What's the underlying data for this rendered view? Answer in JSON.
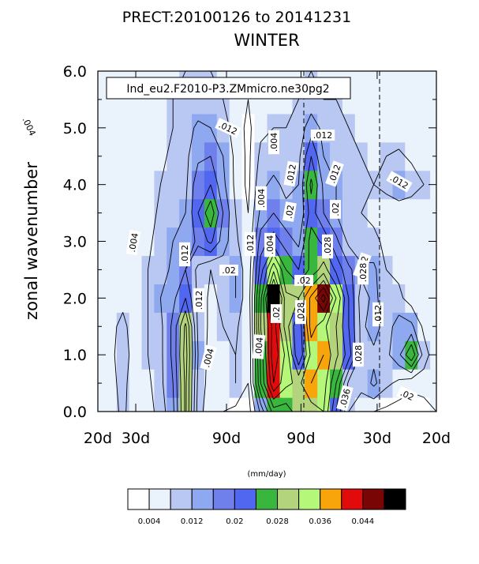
{
  "chart_data": {
    "type": "heatmap",
    "title_line1": "PRECT:20100126 to 20141231",
    "title_line2": "WINTER",
    "annotation": "Ind_eu2.F2010-P3.ZMmicro.ne30pg2",
    "ylabel": "zonal wavenumber",
    "ylim": [
      0,
      6
    ],
    "yticks": [
      "0.0",
      "1.0",
      "2.0",
      "3.0",
      "4.0",
      "5.0",
      "6.0"
    ],
    "xticks": [
      "20d",
      "30d",
      "90d",
      "90d",
      "30d",
      "20d"
    ],
    "units": "(mm/day)",
    "levels": [
      0.004,
      0.008,
      0.012,
      0.016,
      0.02,
      0.024,
      0.028,
      0.032,
      0.036,
      0.04,
      0.044,
      0.048
    ],
    "colorbar_labels": [
      "0.004",
      "0.012",
      "0.02",
      "0.028",
      "0.036",
      "0.044"
    ],
    "colors": [
      "#ffffff",
      "#eaf3fb",
      "#b9c8f2",
      "#8fa9f0",
      "#6f80ec",
      "#5267ef",
      "#38b63e",
      "#b3d47c",
      "#b4f779",
      "#f8a40b",
      "#e20b0b",
      "#7a0505",
      "#000000"
    ],
    "contour_labels": [
      ".004",
      ".004",
      ".004",
      ".004",
      ".004",
      ".004",
      ".004",
      ".012",
      ".012",
      ".012",
      ".012",
      ".012",
      ".012",
      ".012",
      ".012",
      ".012",
      ".012",
      ".02",
      ".02",
      ".02",
      ".02",
      ".02",
      ".02",
      ".028",
      ".028",
      ".028",
      ".028",
      ".036"
    ],
    "rows_wavenumber": [
      0,
      0.5,
      1,
      1.5,
      2,
      2.5,
      3,
      3.5,
      4,
      4.5,
      5,
      5.5,
      6
    ],
    "cols_x_fraction": [
      0,
      0.037,
      0.074,
      0.111,
      0.148,
      0.185,
      0.222,
      0.259,
      0.296,
      0.333,
      0.37,
      0.407,
      0.444,
      0.481,
      0.519,
      0.556,
      0.593,
      0.63,
      0.667,
      0.704,
      0.741,
      0.778,
      0.815,
      0.852,
      0.889,
      0.926,
      0.963,
      1
    ],
    "grid": [
      [
        0.006,
        0.006,
        0.009,
        0.005,
        0.006,
        0.01,
        0.015,
        0.029,
        0.01,
        0.005,
        0.004,
        0.003,
        0.002,
        0.013,
        0.026,
        0.026,
        0.03,
        0.03,
        0.032,
        0.02,
        0.008,
        0.006,
        0.004,
        0.003,
        0.002,
        0.002,
        0.002,
        0.004
      ],
      [
        0.006,
        0.007,
        0.009,
        0.006,
        0.007,
        0.011,
        0.016,
        0.029,
        0.011,
        0.006,
        0.007,
        0.008,
        0.004,
        0.024,
        0.04,
        0.033,
        0.031,
        0.036,
        0.034,
        0.024,
        0.011,
        0.009,
        0.013,
        0.009,
        0.007,
        0.005,
        0.006,
        0.005
      ],
      [
        0.005,
        0.007,
        0.01,
        0.006,
        0.008,
        0.011,
        0.017,
        0.03,
        0.012,
        0.006,
        0.007,
        0.008,
        0.004,
        0.025,
        0.043,
        0.035,
        0.02,
        0.033,
        0.036,
        0.029,
        0.022,
        0.011,
        0.011,
        0.011,
        0.015,
        0.024,
        0.01,
        0.005
      ],
      [
        0.005,
        0.007,
        0.009,
        0.006,
        0.008,
        0.011,
        0.017,
        0.029,
        0.011,
        0.007,
        0.008,
        0.009,
        0.004,
        0.028,
        0.042,
        0.03,
        0.02,
        0.038,
        0.033,
        0.028,
        0.02,
        0.011,
        0.014,
        0.01,
        0.014,
        0.013,
        0.007,
        0.004
      ],
      [
        0.006,
        0.006,
        0.007,
        0.006,
        0.008,
        0.012,
        0.015,
        0.02,
        0.011,
        0.007,
        0.009,
        0.012,
        0.005,
        0.027,
        0.05,
        0.029,
        0.028,
        0.037,
        0.046,
        0.032,
        0.02,
        0.01,
        0.013,
        0.01,
        0.009,
        0.006,
        0.004,
        0.004
      ],
      [
        0.005,
        0.005,
        0.006,
        0.006,
        0.008,
        0.01,
        0.013,
        0.016,
        0.011,
        0.008,
        0.01,
        0.012,
        0.005,
        0.022,
        0.035,
        0.024,
        0.02,
        0.025,
        0.03,
        0.023,
        0.017,
        0.013,
        0.013,
        0.008,
        0.007,
        0.005,
        0.004,
        0.004
      ],
      [
        0.004,
        0.004,
        0.005,
        0.005,
        0.007,
        0.01,
        0.012,
        0.013,
        0.017,
        0.021,
        0.014,
        0.009,
        0.004,
        0.018,
        0.022,
        0.018,
        0.015,
        0.026,
        0.023,
        0.017,
        0.011,
        0.009,
        0.009,
        0.007,
        0.006,
        0.005,
        0.004,
        0.004
      ],
      [
        0.004,
        0.004,
        0.004,
        0.004,
        0.006,
        0.009,
        0.01,
        0.012,
        0.02,
        0.027,
        0.016,
        0.008,
        0.004,
        0.013,
        0.016,
        0.013,
        0.012,
        0.022,
        0.016,
        0.012,
        0.009,
        0.008,
        0.007,
        0.006,
        0.005,
        0.004,
        0.004,
        0.004
      ],
      [
        0.004,
        0.005,
        0.005,
        0.004,
        0.005,
        0.008,
        0.009,
        0.011,
        0.019,
        0.02,
        0.013,
        0.007,
        0.003,
        0.011,
        0.013,
        0.011,
        0.012,
        0.025,
        0.015,
        0.012,
        0.009,
        0.008,
        0.008,
        0.009,
        0.012,
        0.011,
        0.008,
        0.005
      ],
      [
        0.004,
        0.005,
        0.005,
        0.004,
        0.005,
        0.007,
        0.009,
        0.011,
        0.015,
        0.016,
        0.012,
        0.007,
        0.003,
        0.009,
        0.01,
        0.009,
        0.011,
        0.02,
        0.012,
        0.01,
        0.008,
        0.008,
        0.007,
        0.008,
        0.009,
        0.007,
        0.006,
        0.005
      ],
      [
        0.004,
        0.004,
        0.004,
        0.004,
        0.005,
        0.007,
        0.008,
        0.01,
        0.013,
        0.012,
        0.01,
        0.006,
        0.003,
        0.007,
        0.008,
        0.008,
        0.01,
        0.014,
        0.011,
        0.009,
        0.008,
        0.007,
        0.006,
        0.006,
        0.005,
        0.005,
        0.004,
        0.004
      ],
      [
        0.004,
        0.005,
        0.005,
        0.005,
        0.005,
        0.007,
        0.008,
        0.009,
        0.009,
        0.009,
        0.008,
        0.006,
        0.004,
        0.006,
        0.006,
        0.007,
        0.008,
        0.01,
        0.008,
        0.008,
        0.007,
        0.007,
        0.006,
        0.005,
        0.005,
        0.005,
        0.005,
        0.005
      ],
      [
        0.005,
        0.006,
        0.006,
        0.006,
        0.006,
        0.006,
        0.007,
        0.008,
        0.008,
        0.008,
        0.007,
        0.006,
        0.005,
        0.005,
        0.006,
        0.006,
        0.007,
        0.008,
        0.007,
        0.007,
        0.006,
        0.006,
        0.006,
        0.005,
        0.005,
        0.005,
        0.006,
        0.006
      ]
    ]
  }
}
